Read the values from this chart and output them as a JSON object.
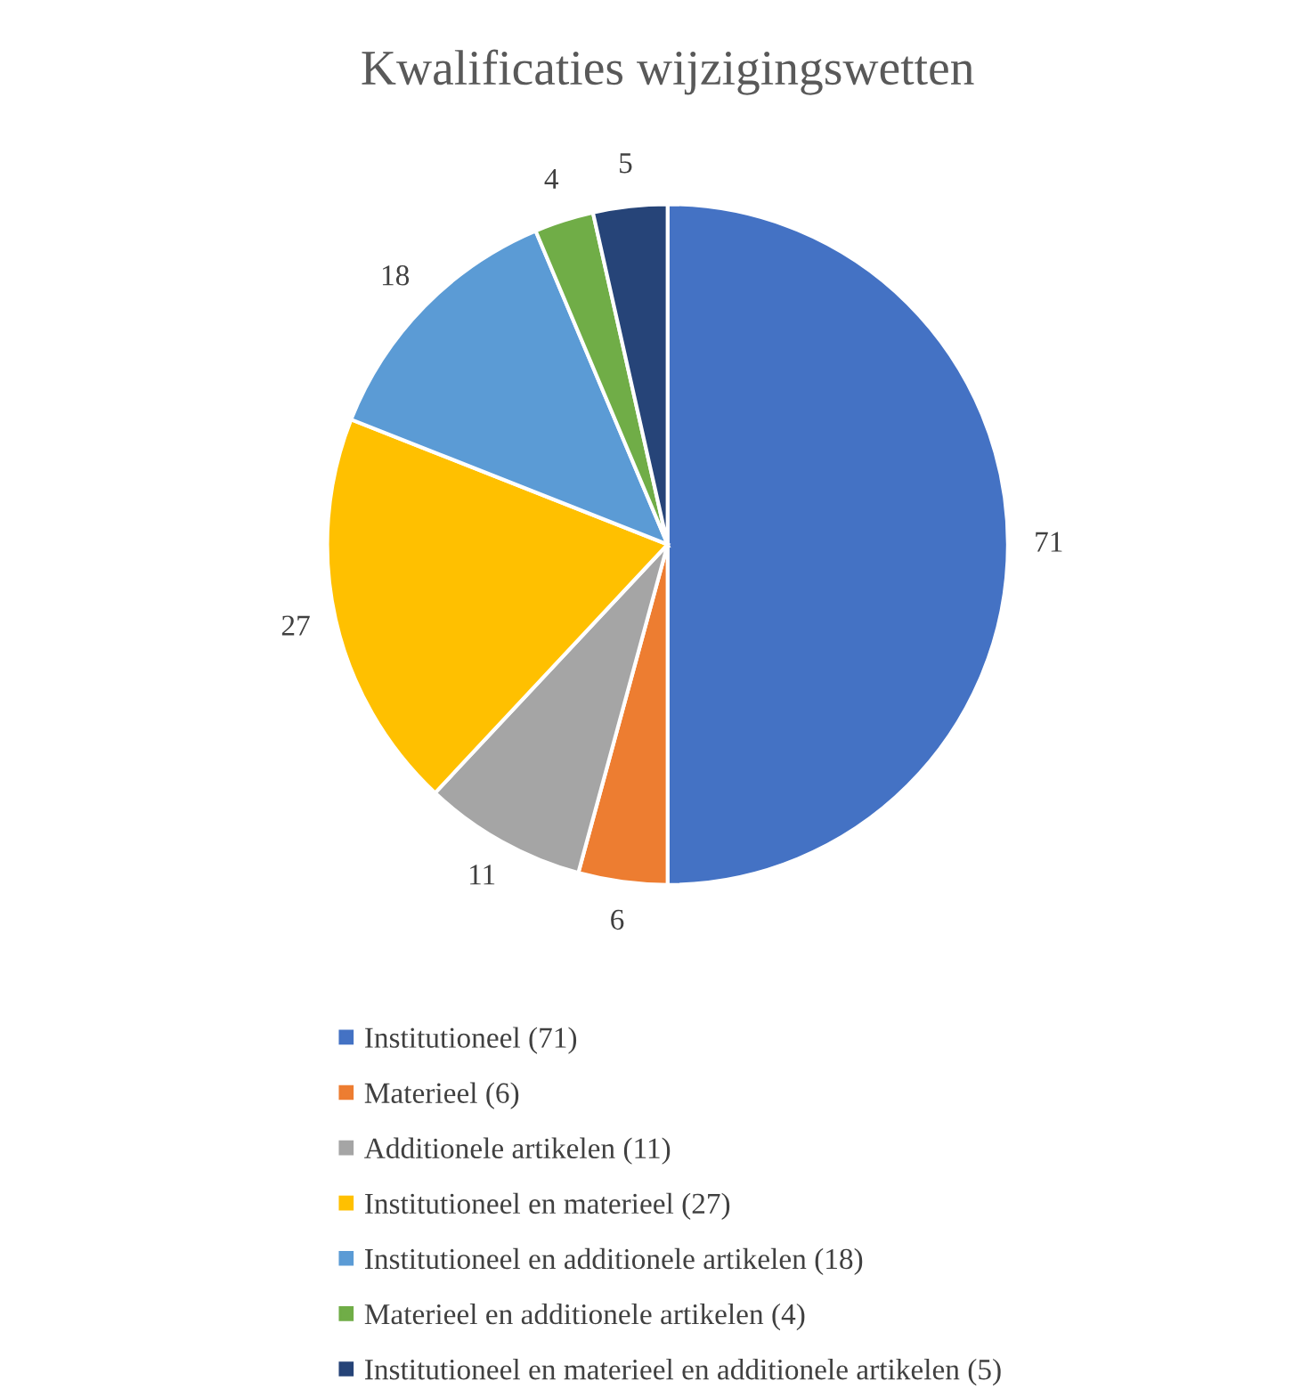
{
  "chart_data": {
    "type": "pie",
    "title": "Kwalificaties wijzigingswetten",
    "categories": [
      "Institutioneel (71)",
      "Materieel (6)",
      "Additionele artikelen (11)",
      "Institutioneel en materieel (27)",
      "Institutioneel en additionele artikelen (18)",
      "Materieel en additionele artikelen (4)",
      "Institutioneel en materieel en additionele artikelen (5)"
    ],
    "values": [
      71,
      6,
      11,
      27,
      18,
      4,
      5
    ],
    "colors": [
      "#4472c4",
      "#ed7d31",
      "#a5a5a5",
      "#ffc000",
      "#5b9bd5",
      "#70ad47",
      "#264478"
    ],
    "data_labels": true,
    "legend": "bottom"
  }
}
